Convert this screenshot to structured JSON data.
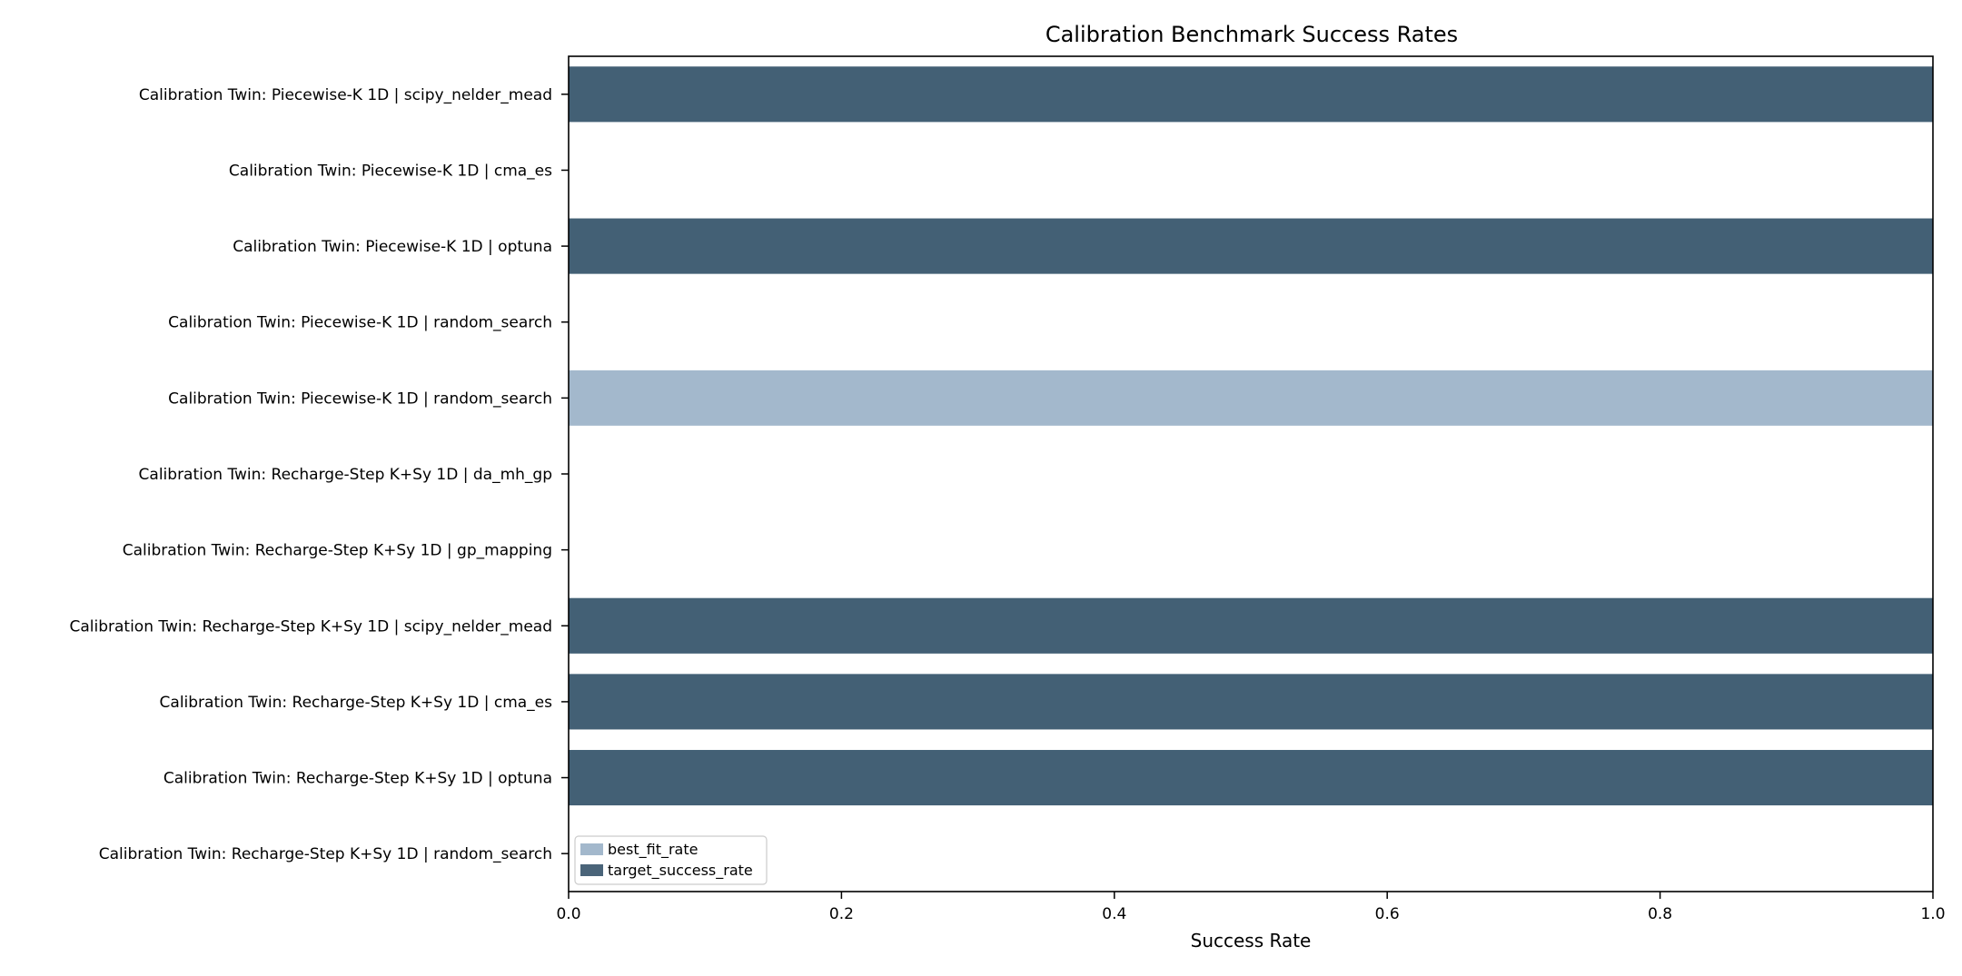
{
  "chart_data": {
    "type": "bar",
    "orientation": "horizontal",
    "title": "Calibration Benchmark Success Rates",
    "xlabel": "Success Rate",
    "ylabel": "",
    "xlim": [
      0,
      1
    ],
    "xticks": [
      "0.0",
      "0.2",
      "0.4",
      "0.6",
      "0.8",
      "1.0"
    ],
    "grid": false,
    "legend_position": "bottom-left",
    "categories": [
      "Calibration Twin: Piecewise-K 1D | scipy_nelder_mead",
      "Calibration Twin: Piecewise-K 1D | cma_es",
      "Calibration Twin: Piecewise-K 1D | optuna",
      "Calibration Twin: Piecewise-K 1D | random_search",
      "Calibration Twin: Piecewise-K 1D | random_search",
      "Calibration Twin: Recharge-Step K+Sy 1D | da_mh_gp",
      "Calibration Twin: Recharge-Step K+Sy 1D | gp_mapping",
      "Calibration Twin: Recharge-Step K+Sy 1D | scipy_nelder_mead",
      "Calibration Twin: Recharge-Step K+Sy 1D | cma_es",
      "Calibration Twin: Recharge-Step K+Sy 1D | optuna",
      "Calibration Twin: Recharge-Step K+Sy 1D | random_search"
    ],
    "series": [
      {
        "name": "best_fit_rate",
        "color": "#a3b8cc",
        "values": [
          1,
          0,
          1,
          0,
          1,
          0,
          0,
          1,
          1,
          1,
          0
        ]
      },
      {
        "name": "target_success_rate",
        "color": "#4a6479",
        "values": [
          1,
          0,
          1,
          0,
          0,
          0,
          0,
          1,
          1,
          1,
          0
        ]
      }
    ],
    "overlap_color": "#3a5b71"
  }
}
